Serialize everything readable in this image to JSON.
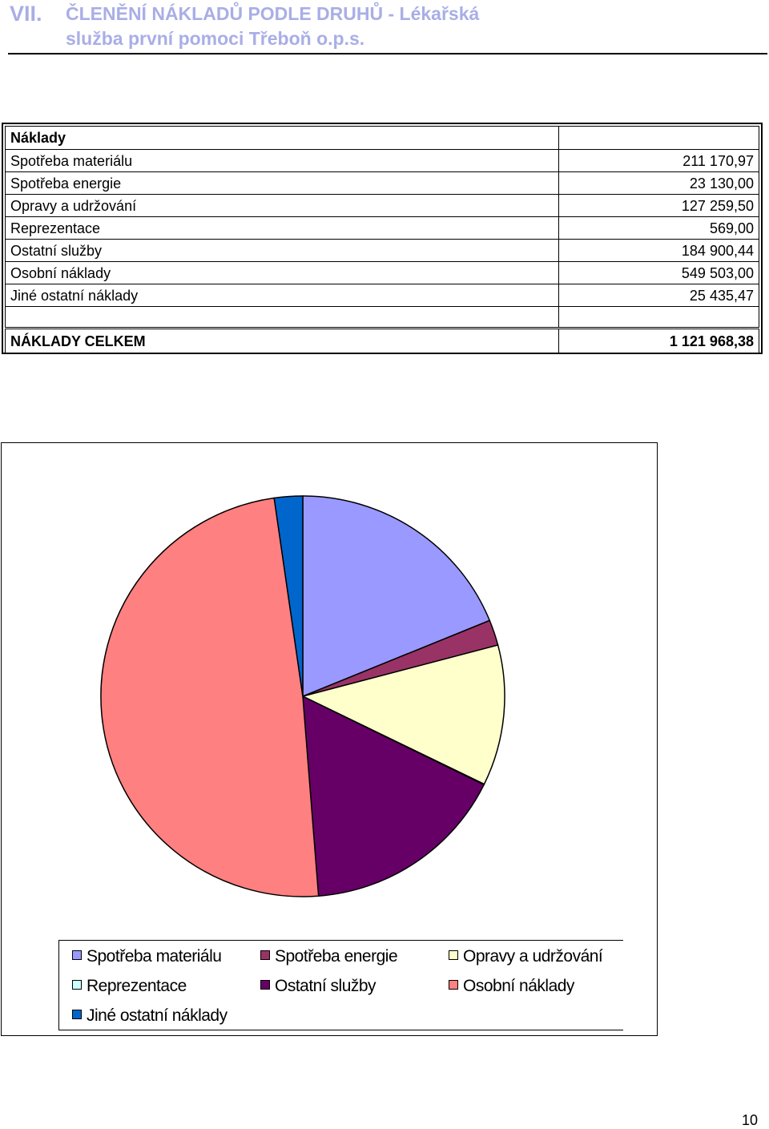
{
  "heading": {
    "number": "VII.",
    "line1": "ČLENĚNÍ NÁKLADŮ PODLE DRUHŮ - Lékařská",
    "line2": "služba první pomoci Třeboň o.p.s."
  },
  "table": {
    "header": "Náklady",
    "rows": [
      {
        "label": "Spotřeba materiálu",
        "value": "211 170,97"
      },
      {
        "label": "Spotřeba energie",
        "value": "23 130,00"
      },
      {
        "label": "Opravy a udržování",
        "value": "127 259,50"
      },
      {
        "label": "Reprezentace",
        "value": "569,00"
      },
      {
        "label": "Ostatní služby",
        "value": "184 900,44"
      },
      {
        "label": "Osobní náklady",
        "value": "549 503,00"
      },
      {
        "label": "Jiné ostatní náklady",
        "value": "25 435,47"
      }
    ],
    "total_label": "NÁKLADY CELKEM",
    "total_value": "1 121 968,38"
  },
  "chart_data": {
    "type": "pie",
    "categories": [
      "Spotřeba materiálu",
      "Spotřeba energie",
      "Opravy a udržování",
      "Reprezentace",
      "Ostatní služby",
      "Osobní náklady",
      "Jiné ostatní náklady"
    ],
    "values": [
      211170.97,
      23130.0,
      127259.5,
      569.0,
      184900.44,
      549503.0,
      25435.47
    ],
    "colors": [
      "#9999ff",
      "#993366",
      "#ffffcc",
      "#ccffff",
      "#660066",
      "#ff8080",
      "#0066cc"
    ],
    "legend_position": "bottom"
  },
  "page_number": "10"
}
